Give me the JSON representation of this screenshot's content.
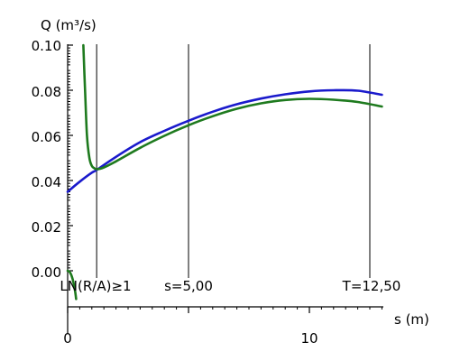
{
  "chart_data": {
    "type": "line",
    "y_axis_title": "Q (m³/s)",
    "x_axis_title": "s (m)",
    "y_tick_labels": [
      "0.10",
      "0.08",
      "0.06",
      "0.04",
      "0.02",
      "0.00"
    ],
    "x_tick_labels": [
      "0",
      "10"
    ],
    "ylim": [
      -0.02,
      0.1
    ],
    "xlim": [
      0,
      13.0
    ],
    "grid": false,
    "vertical_markers": [
      {
        "x": 1.2,
        "label": "LN(R/A)≥1"
      },
      {
        "x": 5.0,
        "label": "s=5,00"
      },
      {
        "x": 12.5,
        "label": "T=12,50"
      }
    ],
    "series": [
      {
        "color": "#1a1acc",
        "x": [
          0,
          0.5,
          1.0,
          1.2,
          2,
          3,
          4,
          5,
          6,
          7,
          8,
          9,
          10,
          11,
          12,
          13
        ],
        "y": [
          0.035,
          0.0395,
          0.0435,
          0.0447,
          0.0505,
          0.057,
          0.062,
          0.0665,
          0.0705,
          0.0738,
          0.0763,
          0.0782,
          0.0795,
          0.08,
          0.0798,
          0.078
        ]
      },
      {
        "color": "#1e7a1e",
        "x": [
          0.65,
          0.72,
          0.8,
          0.9,
          1.0,
          1.1,
          1.2,
          1.5,
          2,
          3,
          4,
          5,
          6,
          7,
          8,
          9,
          10,
          11,
          12,
          13
        ],
        "y": [
          0.1,
          0.08,
          0.06,
          0.05,
          0.0465,
          0.0455,
          0.045,
          0.0458,
          0.0485,
          0.0545,
          0.0598,
          0.0645,
          0.0685,
          0.0718,
          0.0742,
          0.0757,
          0.0762,
          0.0758,
          0.0748,
          0.0728
        ]
      },
      {
        "color": "#1e7a1e",
        "x": [
          0,
          0.1,
          0.2,
          0.3,
          0.35
        ],
        "y": [
          0.0,
          -0.0008,
          -0.0035,
          -0.0085,
          -0.0125
        ]
      }
    ]
  }
}
